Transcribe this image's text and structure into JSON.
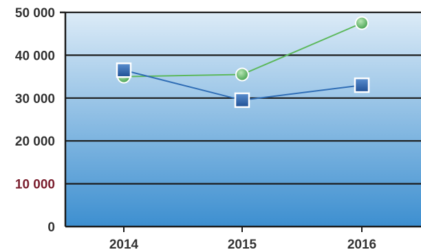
{
  "chart_data": {
    "type": "line",
    "title": "",
    "xlabel": "",
    "ylabel": "",
    "categories": [
      "2014",
      "2015",
      "2016"
    ],
    "ylim": [
      0,
      50000
    ],
    "yticks": [
      {
        "value": 0,
        "label": "0"
      },
      {
        "value": 10000,
        "label": "10 000"
      },
      {
        "value": 20000,
        "label": "20 000"
      },
      {
        "value": 30000,
        "label": "30 000"
      },
      {
        "value": 40000,
        "label": "40 000"
      },
      {
        "value": 50000,
        "label": "50 000"
      }
    ],
    "grid": true,
    "legend": "none",
    "series": [
      {
        "marker": "circle",
        "color": "#5cb85c",
        "values": [
          35000,
          35500,
          47500
        ]
      },
      {
        "marker": "square",
        "color": "#2f6db5",
        "values": [
          36500,
          29500,
          33000
        ]
      }
    ],
    "colors": {
      "plot_top": "#dcebf7",
      "plot_bottom": "#3d8fd0",
      "gridline": "#1a1a1a",
      "tick_10000": "#7a1e2e"
    }
  }
}
